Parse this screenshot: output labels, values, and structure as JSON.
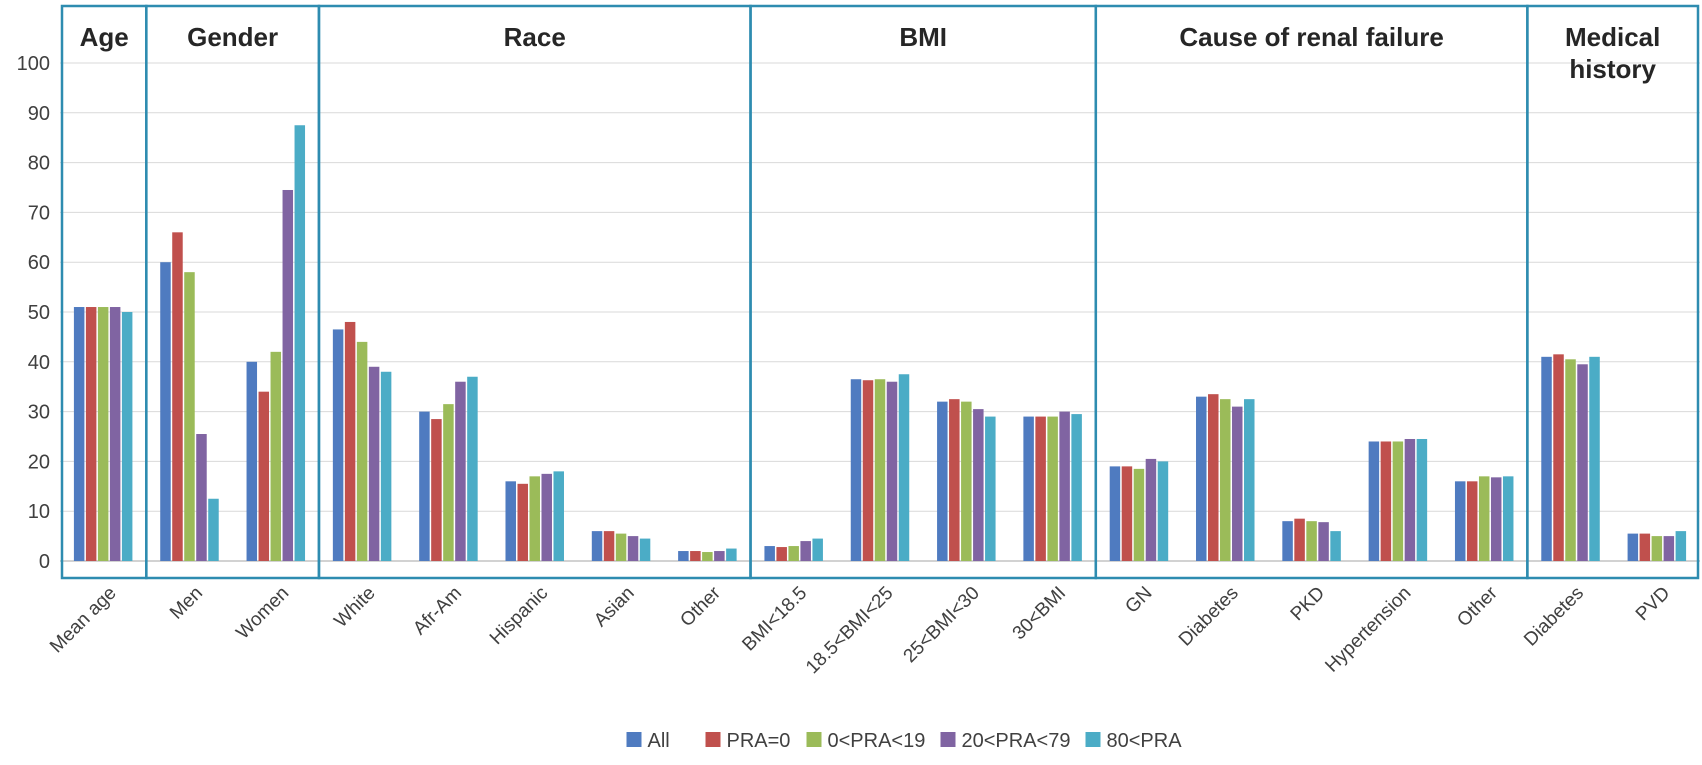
{
  "chart_data": {
    "type": "bar",
    "ylim": [
      0,
      100
    ],
    "yticks": [
      0,
      10,
      20,
      30,
      40,
      50,
      60,
      70,
      80,
      90,
      100
    ],
    "grid": true,
    "legend_position": "bottom",
    "categories": [
      "Mean age",
      "Men",
      "Women",
      "White",
      "Afr-Am",
      "Hispanic",
      "Asian",
      "Other",
      "BMI<18.5",
      "18.5<BMI<25",
      "25<BMI<30",
      "30<BMI",
      "GN",
      "Diabetes",
      "PKD",
      "Hypertension",
      "Other",
      "Diabetes",
      "PVD"
    ],
    "groups": [
      {
        "label": "Age",
        "categories": [
          "Mean age"
        ]
      },
      {
        "label": "Gender",
        "categories": [
          "Men",
          "Women"
        ]
      },
      {
        "label": "Race",
        "categories": [
          "White",
          "Afr-Am",
          "Hispanic",
          "Asian",
          "Other"
        ]
      },
      {
        "label": "BMI",
        "categories": [
          "BMI<18.5",
          "18.5<BMI<25",
          "25<BMI<30",
          "30<BMI"
        ]
      },
      {
        "label": "Cause of renal failure",
        "categories": [
          "GN",
          "Diabetes",
          "PKD",
          "Hypertension",
          "Other"
        ]
      },
      {
        "label": "Medical history",
        "categories": [
          "Diabetes",
          "PVD"
        ]
      }
    ],
    "series": [
      {
        "name": "All",
        "color": "#4F7BC0",
        "values": [
          51,
          60,
          40,
          46.5,
          30,
          16,
          6,
          2,
          3,
          36.5,
          32,
          29,
          19,
          33,
          8,
          24,
          16,
          41,
          5.5
        ]
      },
      {
        "name": "PRA=0",
        "color": "#C0504D",
        "values": [
          51,
          66,
          34,
          48,
          28.5,
          15.5,
          6,
          2,
          2.8,
          36.3,
          32.5,
          29,
          19,
          33.5,
          8.5,
          24,
          16,
          41.5,
          5.5
        ]
      },
      {
        "name": "0<PRA<19",
        "color": "#9BBB59",
        "values": [
          51,
          58,
          42,
          44,
          31.5,
          17,
          5.5,
          1.8,
          3,
          36.5,
          32,
          29,
          18.5,
          32.5,
          8,
          24,
          17,
          40.5,
          5
        ]
      },
      {
        "name": "20<PRA<79",
        "color": "#8064A2",
        "values": [
          51,
          25.5,
          74.5,
          39,
          36,
          17.5,
          5,
          2,
          4,
          36,
          30.5,
          30,
          20.5,
          31,
          7.8,
          24.5,
          16.8,
          39.5,
          5
        ]
      },
      {
        "name": "80<PRA",
        "color": "#4BACC6",
        "values": [
          50,
          12.5,
          87.5,
          38,
          37,
          18,
          4.5,
          2.5,
          4.5,
          37.5,
          29,
          29.5,
          20,
          32.5,
          6,
          24.5,
          17,
          41,
          6
        ]
      }
    ]
  }
}
